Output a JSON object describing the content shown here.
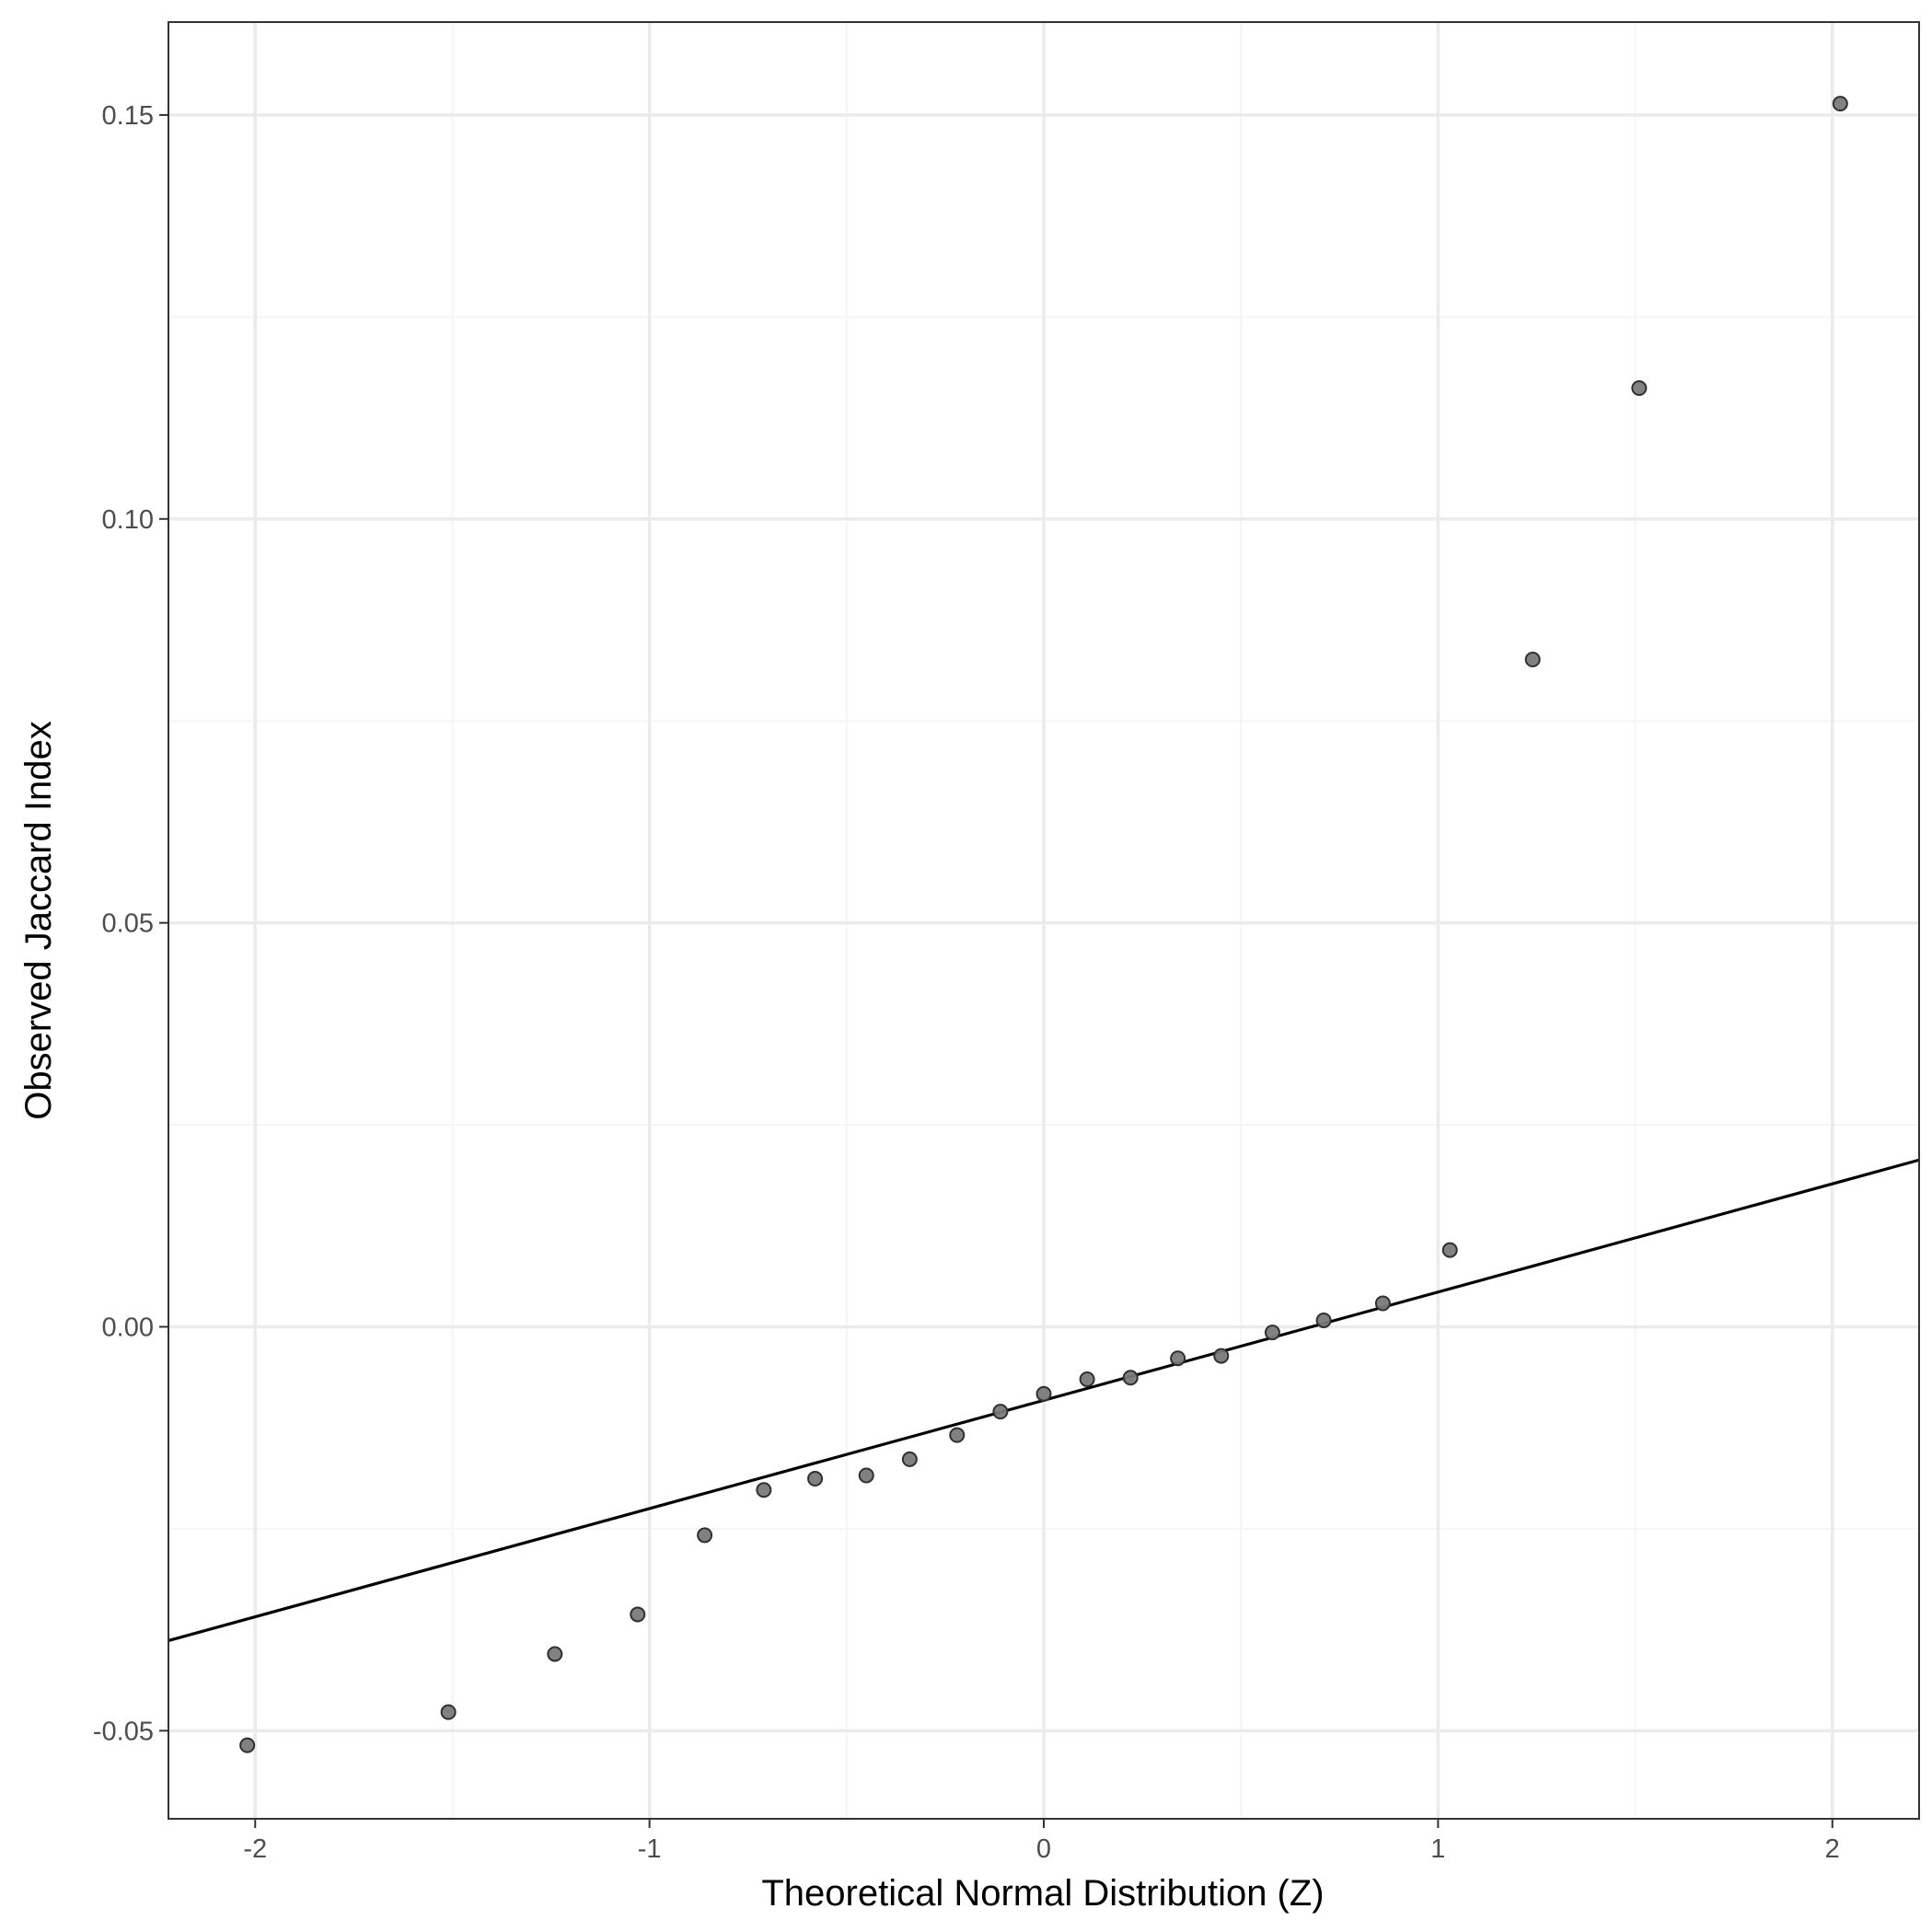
{
  "chart_data": {
    "type": "scatter",
    "xlabel": "Theoretical Normal Distribution (Z)",
    "ylabel": "Observed Jaccard Index",
    "xlim": [
      -2.22,
      2.22
    ],
    "ylim": [
      -0.0609,
      0.1615
    ],
    "x_ticks": [
      -2,
      -1,
      0,
      1,
      2
    ],
    "x_tick_labels": [
      "-2",
      "-1",
      "0",
      "1",
      "2"
    ],
    "y_ticks": [
      -0.05,
      0.0,
      0.05,
      0.1,
      0.15
    ],
    "y_tick_labels": [
      "-0.05",
      "0.00",
      "0.05",
      "0.10",
      "0.15"
    ],
    "grid": true,
    "points": [
      {
        "x": -2.02,
        "y": -0.0518
      },
      {
        "x": -1.51,
        "y": -0.0477
      },
      {
        "x": -1.24,
        "y": -0.0405
      },
      {
        "x": -1.03,
        "y": -0.0356
      },
      {
        "x": -0.86,
        "y": -0.0258
      },
      {
        "x": -0.71,
        "y": -0.0202
      },
      {
        "x": -0.58,
        "y": -0.0188
      },
      {
        "x": -0.45,
        "y": -0.0184
      },
      {
        "x": -0.34,
        "y": -0.0164
      },
      {
        "x": -0.22,
        "y": -0.0134
      },
      {
        "x": -0.11,
        "y": -0.0105
      },
      {
        "x": 0.0,
        "y": -0.0083
      },
      {
        "x": 0.11,
        "y": -0.0065
      },
      {
        "x": 0.22,
        "y": -0.0063
      },
      {
        "x": 0.34,
        "y": -0.0039
      },
      {
        "x": 0.45,
        "y": -0.0036
      },
      {
        "x": 0.58,
        "y": -0.0007
      },
      {
        "x": 0.71,
        "y": 0.0008
      },
      {
        "x": 0.86,
        "y": 0.0029
      },
      {
        "x": 1.03,
        "y": 0.0095
      },
      {
        "x": 1.24,
        "y": 0.0826
      },
      {
        "x": 1.51,
        "y": 0.1162
      },
      {
        "x": 2.02,
        "y": 0.1514
      }
    ],
    "reference_line": {
      "intercept": -0.0091,
      "slope": 0.0134
    },
    "colors": {
      "point_fill": "#7a7a7a",
      "point_stroke": "#303030",
      "line": "#000000",
      "grid_major": "#ebebeb",
      "grid_minor": "#f5f5f5",
      "panel_border": "#333333"
    }
  }
}
